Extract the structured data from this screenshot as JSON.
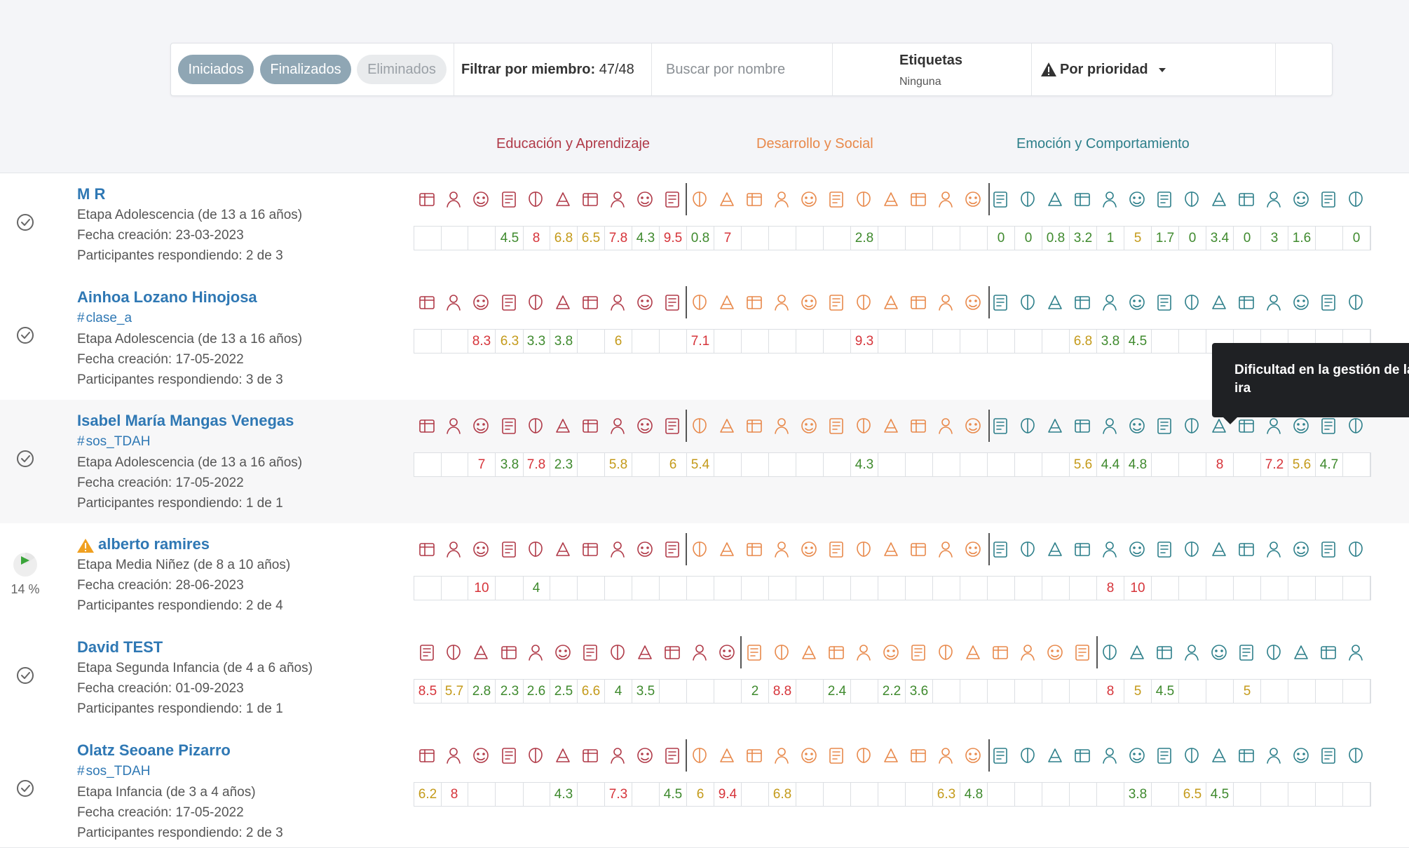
{
  "toolbar": {
    "btn_started": "Iniciados",
    "btn_finished": "Finalizados",
    "btn_deleted": "Eliminados",
    "filter_label": "Filtrar por miembro:",
    "filter_value": "47/48",
    "search_placeholder": "Buscar por nombre",
    "tags_label": "Etiquetas",
    "tags_value": "Ninguna",
    "sort_label": "Por prioridad"
  },
  "categories": {
    "education": "Educación y Aprendizaje",
    "development": "Desarrollo y Social",
    "emotion": "Emoción y Comportamiento"
  },
  "colors": {
    "education": "#b03a48",
    "development": "#e8894b",
    "emotion": "#2d7f8a",
    "score_red": "#d6343a",
    "score_yellow": "#c49a1a",
    "score_green": "#3f8a2e",
    "name_blue": "#2f78b4"
  },
  "tooltip": {
    "text": "Dificultad en la gestión de la ira"
  },
  "rows": [
    {
      "name": "M R",
      "tag": "",
      "stage": "Etapa Adolescencia (de 13 a 16 años)",
      "created": "Fecha creación: 23-03-2023",
      "responding": "Participantes respondiendo: 2 de 3",
      "status": "done",
      "layout": "A",
      "scores": [
        "",
        "",
        "",
        "4.5",
        "8",
        "6.8",
        "6.5",
        "7.8",
        "4.3",
        "9.5",
        "0.8",
        "7",
        "",
        "",
        "",
        "",
        "2.8",
        "",
        "",
        "",
        "",
        "0",
        "0",
        "0.8",
        "3.2",
        "1",
        "5",
        "1.7",
        "0",
        "3.4",
        "0",
        "3",
        "1.6",
        "",
        "0"
      ]
    },
    {
      "name": "Ainhoa Lozano Hinojosa",
      "tag": "clase_a",
      "stage": "Etapa Adolescencia (de 13 a 16 años)",
      "created": "Fecha creación: 17-05-2022",
      "responding": "Participantes respondiendo: 3 de 3",
      "status": "done",
      "layout": "A",
      "scores": [
        "",
        "",
        "8.3",
        "6.3",
        "3.3",
        "3.8",
        "",
        "6",
        "",
        "",
        "7.1",
        "",
        "",
        "",
        "",
        "",
        "9.3",
        "",
        "",
        "",
        "",
        "",
        "",
        "",
        "6.8",
        "3.8",
        "4.5",
        "",
        "",
        "",
        "",
        "",
        "",
        "",
        ""
      ]
    },
    {
      "name": "Isabel María Mangas Venegas",
      "tag": "sos_TDAH",
      "stage": "Etapa Adolescencia (de 13 a 16 años)",
      "created": "Fecha creación: 17-05-2022",
      "responding": "Participantes respondiendo: 1 de 1",
      "status": "done",
      "layout": "A",
      "scores": [
        "",
        "",
        "7",
        "3.8",
        "7.8",
        "2.3",
        "",
        "5.8",
        "",
        "6",
        "5.4",
        "",
        "",
        "",
        "",
        "",
        "4.3",
        "",
        "",
        "",
        "",
        "",
        "",
        "",
        "5.6",
        "4.4",
        "4.8",
        "",
        "",
        "8",
        "",
        "7.2",
        "5.6",
        "4.7",
        ""
      ]
    },
    {
      "name": "alberto ramires",
      "tag": "",
      "stage": "Etapa Media Niñez (de 8 a 10 años)",
      "created": "Fecha creación: 28-06-2023",
      "responding": "Participantes respondiendo: 2 de 4",
      "status": "progress",
      "progress_label": "14 %",
      "progress_value": 0.14,
      "warning": true,
      "layout": "A",
      "scores": [
        "",
        "",
        "10",
        "",
        "4",
        "",
        "",
        "",
        "",
        "",
        "",
        "",
        "",
        "",
        "",
        "",
        "",
        "",
        "",
        "",
        "",
        "",
        "",
        "",
        "",
        "8",
        "10",
        "",
        "",
        "",
        "",
        "",
        "",
        "",
        ""
      ]
    },
    {
      "name": "David TEST",
      "tag": "",
      "stage": "Etapa Segunda Infancia (de 4 a 6 años)",
      "created": "Fecha creación: 01-09-2023",
      "responding": "Participantes respondiendo: 1 de 1",
      "status": "done",
      "layout": "B",
      "scores": [
        "8.5",
        "5.7",
        "2.8",
        "2.3",
        "2.6",
        "2.5",
        "6.6",
        "4",
        "3.5",
        "",
        "",
        "",
        "2",
        "8.8",
        "",
        "2.4",
        "",
        "2.2",
        "3.6",
        "",
        "",
        "",
        "",
        "",
        "",
        "8",
        "5",
        "4.5",
        "",
        "",
        "5",
        "",
        "",
        "",
        ""
      ]
    },
    {
      "name": "Olatz Seoane Pizarro",
      "tag": "sos_TDAH",
      "stage": "Etapa Infancia (de 3 a 4 años)",
      "created": "Fecha creación: 17-05-2022",
      "responding": "Participantes respondiendo: 2 de 3",
      "status": "done",
      "layout": "A",
      "scores": [
        "6.2",
        "8",
        "",
        "",
        "",
        "4.3",
        "",
        "7.3",
        "",
        "4.5",
        "6",
        "9.4",
        "",
        "6.8",
        "",
        "",
        "",
        "",
        "",
        "6.3",
        "4.8",
        "",
        "",
        "",
        "",
        "",
        "3.8",
        "",
        "6.5",
        "4.5",
        "",
        "",
        "",
        "",
        ""
      ]
    }
  ]
}
